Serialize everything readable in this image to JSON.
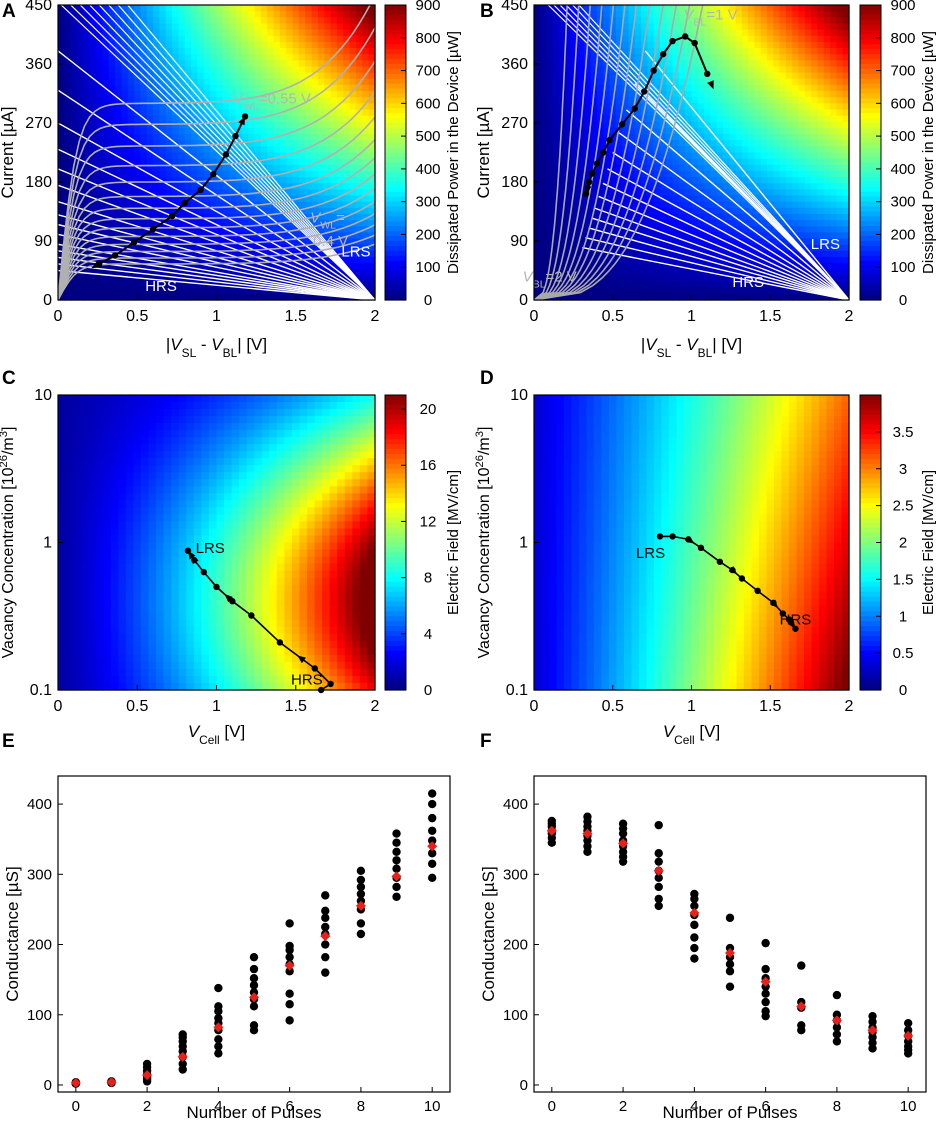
{
  "chart_data": [
    {
      "panel": "A",
      "type": "heatmap",
      "xlabel": "|V_SL - V_BL| [V]",
      "ylabel": "Current [µA]",
      "xticks": [
        "0",
        "0.5",
        "1",
        "1.5",
        "2"
      ],
      "yticks": [
        "0",
        "90",
        "180",
        "270",
        "360",
        "450"
      ],
      "xlim": [
        0,
        2
      ],
      "ylim": [
        0,
        450
      ],
      "colorbar": {
        "label": "Dissipated Power in the Device [µW]",
        "ticks": [
          "0",
          "100",
          "200",
          "300",
          "400",
          "500",
          "600",
          "700",
          "800",
          "900"
        ],
        "range": [
          0,
          900
        ]
      },
      "annotations": [
        {
          "text": "V_WL=0.55 V",
          "x": 1.35,
          "y": 300
        },
        {
          "text": "V_WL=",
          "x": 1.7,
          "y": 118
        },
        {
          "text": "0.4 V",
          "x": 1.72,
          "y": 82
        },
        {
          "text": "LRS",
          "x": 1.88,
          "y": 66
        },
        {
          "text": "HRS",
          "x": 0.65,
          "y": 14
        }
      ],
      "load_lines": [
        45,
        55,
        65,
        75,
        85,
        100,
        115,
        130,
        150,
        175,
        200,
        230,
        270,
        320,
        380
      ],
      "wl_curves": [
        55,
        64,
        74,
        85,
        97,
        110,
        124,
        140,
        158,
        180,
        205,
        235,
        268,
        300
      ],
      "trajectory": {
        "direction": "set",
        "x": [
          0.26,
          0.36,
          0.48,
          0.6,
          0.72,
          0.8,
          0.9,
          0.98,
          1.06,
          1.12,
          1.18
        ],
        "y": [
          55,
          68,
          88,
          108,
          128,
          148,
          168,
          192,
          222,
          250,
          280
        ]
      },
      "arrows": [
        "start-at-HRS",
        "end-at-LRS"
      ]
    },
    {
      "panel": "B",
      "type": "heatmap",
      "xlabel": "|V_SL - V_BL| [V]",
      "ylabel": "Current [µA]",
      "xticks": [
        "0",
        "0.5",
        "1",
        "1.5",
        "2"
      ],
      "yticks": [
        "0",
        "90",
        "180",
        "270",
        "360",
        "450"
      ],
      "xlim": [
        0,
        2
      ],
      "ylim": [
        0,
        450
      ],
      "colorbar": {
        "label": "Dissipated Power in the Device [µW]",
        "ticks": [
          "0",
          "100",
          "200",
          "300",
          "400",
          "500",
          "600",
          "700",
          "800",
          "900"
        ],
        "range": [
          0,
          900
        ]
      },
      "annotations": [
        {
          "text": "V_BL=1 V",
          "x": 1.12,
          "y": 428
        },
        {
          "text": "V_BL=2 V",
          "x": 0.1,
          "y": 28
        },
        {
          "text": "LRS",
          "x": 1.85,
          "y": 78
        },
        {
          "text": "HRS",
          "x": 1.36,
          "y": 20
        }
      ],
      "bl_curves": [
        0.2,
        0.27,
        0.34,
        0.41,
        0.48,
        0.55,
        0.62,
        0.7,
        0.78,
        0.86,
        0.94,
        1.02
      ],
      "fan_lines": [
        80,
        95,
        110,
        125,
        140,
        158,
        178,
        200,
        225,
        255,
        290,
        330,
        380
      ],
      "trajectory": {
        "direction": "reset",
        "x": [
          1.1,
          1.02,
          0.96,
          0.88,
          0.82,
          0.76,
          0.7,
          0.64,
          0.56,
          0.48,
          0.44,
          0.4,
          0.37,
          0.35,
          0.33
        ],
        "y": [
          345,
          392,
          402,
          395,
          375,
          350,
          318,
          292,
          268,
          244,
          225,
          208,
          193,
          180,
          162
        ]
      },
      "arrows": [
        "start-at-top-right",
        "end-at-low-left"
      ]
    },
    {
      "panel": "C",
      "type": "heatmap",
      "xlabel": "V_Cell [V]",
      "ylabel": "Vacancy Concentration [10^26/m^3]",
      "xticks": [
        "0",
        "0.5",
        "1",
        "1.5",
        "2"
      ],
      "yticks": [
        "0.1",
        "1",
        "10"
      ],
      "xlim": [
        0,
        2
      ],
      "ylim": [
        0.1,
        10
      ],
      "yscale": "log",
      "colorbar": {
        "label": "Electric Field [MV/cm]",
        "ticks": [
          "0",
          "4",
          "8",
          "12",
          "16",
          "20"
        ],
        "range": [
          0,
          21
        ]
      },
      "annotations": [
        {
          "text": "LRS",
          "x": 0.96,
          "y": 0.92
        },
        {
          "text": "HRS",
          "x": 1.57,
          "y": 0.118
        }
      ],
      "trajectory": {
        "direction": "HRS-to-LRS",
        "x": [
          1.66,
          1.72,
          1.62,
          1.4,
          1.22,
          1.1,
          1.0,
          0.92,
          0.86,
          0.82
        ],
        "y": [
          0.1,
          0.11,
          0.14,
          0.21,
          0.32,
          0.4,
          0.5,
          0.63,
          0.76,
          0.88
        ]
      },
      "arrows": [
        "toward-LRS"
      ]
    },
    {
      "panel": "D",
      "type": "heatmap",
      "xlabel": "V_Cell [V]",
      "ylabel": "Vacancy Concentration [10^26/m^3]",
      "xticks": [
        "0",
        "0.5",
        "1",
        "1.5",
        "2"
      ],
      "yticks": [
        "0.1",
        "1",
        "10"
      ],
      "xlim": [
        0,
        2
      ],
      "ylim": [
        0.1,
        10
      ],
      "yscale": "log",
      "colorbar": {
        "label": "Electric Field [MV/cm]",
        "ticks": [
          "0",
          "0.5",
          "1",
          "1.5",
          "2",
          "2.5",
          "3",
          "3.5"
        ],
        "range": [
          0,
          4
        ]
      },
      "annotations": [
        {
          "text": "LRS",
          "x": 0.74,
          "y": 0.85
        },
        {
          "text": "HRS",
          "x": 1.66,
          "y": 0.3
        }
      ],
      "trajectory": {
        "direction": "LRS-to-HRS",
        "x": [
          0.8,
          0.88,
          0.98,
          1.06,
          1.18,
          1.26,
          1.32,
          1.42,
          1.52,
          1.58,
          1.62,
          1.66
        ],
        "y": [
          1.1,
          1.1,
          1.05,
          0.92,
          0.74,
          0.65,
          0.57,
          0.47,
          0.39,
          0.33,
          0.3,
          0.26
        ]
      },
      "arrows": [
        "toward-HRS"
      ]
    },
    {
      "panel": "E",
      "type": "scatter",
      "xlabel": "Number of Pulses",
      "ylabel": "Conductance [µS]",
      "xticks": [
        "0",
        "2",
        "4",
        "6",
        "8",
        "10"
      ],
      "yticks": [
        "0",
        "100",
        "200",
        "300",
        "400"
      ],
      "xlim": [
        -0.5,
        10.5
      ],
      "ylim": [
        -10,
        440
      ],
      "samples": [
        [
          2,
          2,
          2,
          2,
          3,
          3,
          3,
          4
        ],
        [
          3,
          3,
          4,
          4,
          4,
          5,
          5,
          5
        ],
        [
          5,
          8,
          10,
          12,
          15,
          20,
          25,
          30
        ],
        [
          22,
          30,
          40,
          48,
          55,
          62,
          68,
          72
        ],
        [
          45,
          55,
          65,
          78,
          88,
          95,
          105,
          112,
          138
        ],
        [
          78,
          85,
          112,
          122,
          132,
          142,
          152,
          165,
          182
        ],
        [
          92,
          115,
          130,
          162,
          172,
          182,
          192,
          198,
          230
        ],
        [
          160,
          182,
          200,
          215,
          225,
          238,
          248,
          270
        ],
        [
          215,
          230,
          250,
          262,
          272,
          282,
          292,
          305
        ],
        [
          268,
          282,
          295,
          308,
          320,
          332,
          345,
          358
        ],
        [
          295,
          315,
          330,
          348,
          362,
          380,
          400,
          415
        ]
      ],
      "mean": [
        3,
        4,
        14,
        40,
        82,
        125,
        170,
        212,
        255,
        297,
        340
      ]
    },
    {
      "panel": "F",
      "type": "scatter",
      "xlabel": "Number of Pulses",
      "ylabel": "Conductance [µS]",
      "xticks": [
        "0",
        "2",
        "4",
        "6",
        "8",
        "10"
      ],
      "yticks": [
        "0",
        "100",
        "200",
        "300",
        "400"
      ],
      "xlim": [
        -0.5,
        10.5
      ],
      "ylim": [
        -10,
        440
      ],
      "samples": [
        [
          345,
          352,
          358,
          362,
          368,
          372,
          376
        ],
        [
          332,
          340,
          348,
          355,
          362,
          368,
          375,
          382
        ],
        [
          318,
          325,
          332,
          340,
          348,
          358,
          365,
          372
        ],
        [
          255,
          265,
          282,
          295,
          305,
          318,
          330,
          370
        ],
        [
          180,
          195,
          210,
          228,
          242,
          255,
          265,
          272
        ],
        [
          140,
          162,
          172,
          182,
          195,
          238
        ],
        [
          98,
          105,
          118,
          130,
          140,
          152,
          165,
          202
        ],
        [
          78,
          85,
          110,
          118,
          170
        ],
        [
          62,
          72,
          82,
          92,
          100,
          128
        ],
        [
          52,
          60,
          68,
          75,
          82,
          90,
          98
        ],
        [
          45,
          50,
          55,
          62,
          70,
          78,
          88
        ]
      ],
      "mean": [
        362,
        358,
        344,
        305,
        245,
        188,
        147,
        112,
        92,
        78,
        70
      ]
    }
  ]
}
